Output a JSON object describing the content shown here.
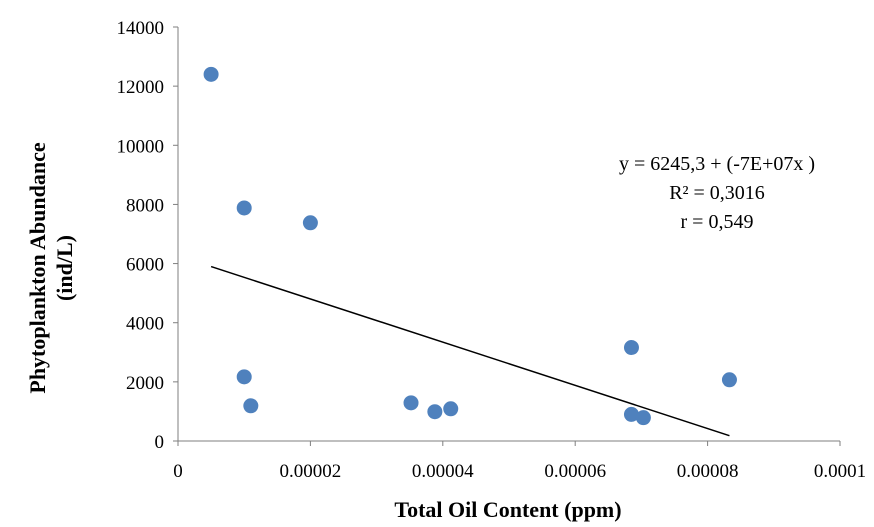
{
  "chart_data": {
    "type": "scatter",
    "xlabel": "Total Oil Content (ppm)",
    "ylabel_lines": [
      "Phytoplankton Abundance",
      "(ind/L)"
    ],
    "xlim": [
      0,
      0.0001
    ],
    "ylim": [
      0,
      14000
    ],
    "x_ticks": [
      0,
      2e-05,
      4e-05,
      6e-05,
      8e-05,
      0.0001
    ],
    "x_tick_labels": [
      "0",
      "0.00002",
      "0.00004",
      "0.00006",
      "0.00008",
      "0.0001"
    ],
    "y_ticks": [
      0,
      2000,
      4000,
      6000,
      8000,
      10000,
      12000,
      14000
    ],
    "y_tick_labels": [
      "0",
      "2000",
      "4000",
      "6000",
      "8000",
      "10000",
      "12000",
      "14000"
    ],
    "grid": false,
    "marker_color": "#4f81bd",
    "trendline_color": "#000000",
    "points": [
      {
        "x": 5e-06,
        "y": 12400
      },
      {
        "x": 1e-05,
        "y": 7880
      },
      {
        "x": 2e-05,
        "y": 7380
      },
      {
        "x": 1e-05,
        "y": 2170
      },
      {
        "x": 1.1e-05,
        "y": 1190
      },
      {
        "x": 3.52e-05,
        "y": 1290
      },
      {
        "x": 3.88e-05,
        "y": 990
      },
      {
        "x": 4.12e-05,
        "y": 1090
      },
      {
        "x": 6.85e-05,
        "y": 3160
      },
      {
        "x": 6.85e-05,
        "y": 900
      },
      {
        "x": 7.03e-05,
        "y": 790
      },
      {
        "x": 8.33e-05,
        "y": 2070
      }
    ],
    "trendline": {
      "x": [
        5e-06,
        8.33e-05
      ],
      "y": [
        5900,
        180
      ]
    },
    "annotations": [
      "y = 6245,3 + (-7E+07x )",
      "R² = 0,3016",
      "r = 0,549"
    ]
  }
}
